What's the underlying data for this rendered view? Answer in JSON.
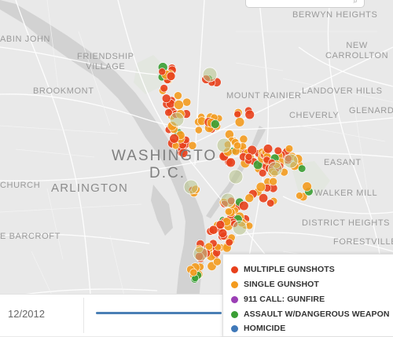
{
  "map": {
    "places": [
      {
        "id": "cabin-john",
        "text": "ABIN JOHN"
      },
      {
        "id": "friendship-village",
        "text": "FRIENDSHIP\nVILLAGE"
      },
      {
        "id": "berwyn-heights",
        "text": "BERWYN HEIGHTS"
      },
      {
        "id": "new-carrollton",
        "text": "NEW\nCARROLLTON"
      },
      {
        "id": "brookmont",
        "text": "BROOKMONT"
      },
      {
        "id": "mount-rainier",
        "text": "MOUNT RAINIER"
      },
      {
        "id": "landover-hills",
        "text": "LANDOVER HILLS"
      },
      {
        "id": "glenarden",
        "text": "GLENARDE"
      },
      {
        "id": "cheverly",
        "text": "CHEVERLY"
      },
      {
        "id": "washington",
        "text": "WASHINGTO"
      },
      {
        "id": "dc",
        "text": "D.C."
      },
      {
        "id": "pleasant",
        "text": "EASANT"
      },
      {
        "id": "church",
        "text": "CHURCH"
      },
      {
        "id": "arlington",
        "text": "ARLINGTON"
      },
      {
        "id": "walker-mill",
        "text": "WALKER MILL"
      },
      {
        "id": "district-heights",
        "text": "DISTRICT HEIGHTS"
      },
      {
        "id": "bailey-crossroads",
        "text": "E BARCROFT"
      },
      {
        "id": "forestville",
        "text": "FORESTVILLE"
      }
    ],
    "colors": {
      "multiple_gunshots": "#e8401c",
      "single_gunshot": "#f39b1f",
      "call_911_gunfire": "#9b3fb5",
      "assault": "#3a9e35",
      "homicide": "#3f78b8"
    }
  },
  "timeline": {
    "date": "12/2012"
  },
  "legend": {
    "items": [
      {
        "label": "MULTIPLE GUNSHOTS",
        "color": "#e8401c"
      },
      {
        "label": "SINGLE GUNSHOT",
        "color": "#f39b1f"
      },
      {
        "label": "911 CALL: GUNFIRE",
        "color": "#9b3fb5"
      },
      {
        "label": "ASSAULT W/DANGEROUS WEAPON",
        "color": "#3a9e35"
      },
      {
        "label": "HOMICIDE",
        "color": "#3f78b8"
      }
    ]
  }
}
